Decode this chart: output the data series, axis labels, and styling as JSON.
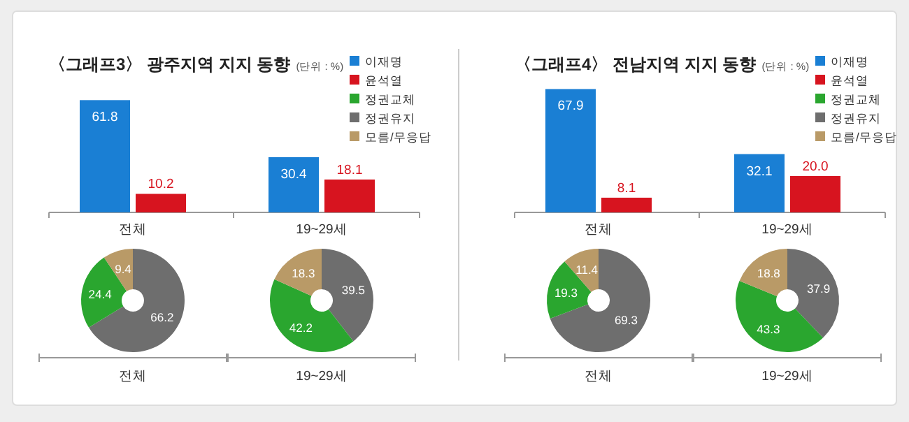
{
  "chart_data": [
    {
      "type": "bar",
      "title": "〈그래프3〉 광주지역 지지 동향",
      "subtitle": "(단위 : %)",
      "categories": [
        "전체",
        "19~29세"
      ],
      "legend": "top right",
      "series": [
        {
          "name": "이재명",
          "color": "#1a7fd4",
          "values": [
            61.8,
            30.4
          ],
          "value_labels": [
            "61.8",
            "30.4"
          ]
        },
        {
          "name": "윤석열",
          "color": "#d7141f",
          "values": [
            10.2,
            18.1
          ],
          "value_labels": [
            "10.2",
            "18.1"
          ]
        },
        {
          "name": "정권교체",
          "color": "#2aa62f",
          "values": [
            null,
            null
          ]
        },
        {
          "name": "정권유지",
          "color": "#6e6e6e",
          "values": [
            null,
            null
          ]
        },
        {
          "name": "모름/무응답",
          "color": "#b99a67",
          "values": [
            null,
            null
          ]
        }
      ]
    },
    {
      "type": "donut",
      "xlabel": "전체",
      "categories": [
        null,
        null,
        null
      ],
      "values": [
        66.2,
        24.4,
        9.4
      ],
      "colors": [
        "#6e6e6e",
        "#2aa62f",
        "#b99a67"
      ],
      "data_labels": true
    },
    {
      "type": "donut",
      "xlabel": "19~29세",
      "categories": [
        null,
        null,
        null
      ],
      "values": [
        39.5,
        42.2,
        18.3
      ],
      "colors": [
        "#6e6e6e",
        "#2aa62f",
        "#b99a67"
      ],
      "data_labels": true
    },
    {
      "type": "bar",
      "title": "〈그래프4〉 전남지역 지지 동향",
      "subtitle": "(단위 : %)",
      "categories": [
        "전체",
        "19~29세"
      ],
      "legend": "top right",
      "series": [
        {
          "name": "이재명",
          "color": "#1a7fd4",
          "values": [
            67.9,
            32.1
          ],
          "value_labels": [
            "67.9",
            "32.1"
          ]
        },
        {
          "name": "윤석열",
          "color": "#d7141f",
          "values": [
            8.1,
            20.0
          ],
          "value_labels": [
            "8.1",
            "20.0"
          ]
        },
        {
          "name": "정권교체",
          "color": "#2aa62f",
          "values": [
            null,
            null
          ]
        },
        {
          "name": "정권유지",
          "color": "#6e6e6e",
          "values": [
            null,
            null
          ]
        },
        {
          "name": "모름/무응답",
          "color": "#b99a67",
          "values": [
            null,
            null
          ]
        }
      ]
    },
    {
      "type": "donut",
      "xlabel": "전체",
      "categories": [
        null,
        null,
        null
      ],
      "values": [
        69.3,
        19.3,
        11.4
      ],
      "colors": [
        "#6e6e6e",
        "#2aa62f",
        "#b99a67"
      ],
      "data_labels": true
    },
    {
      "type": "donut",
      "xlabel": "19~29세",
      "categories": [
        null,
        null,
        null
      ],
      "values": [
        37.9,
        43.3,
        18.8
      ],
      "colors": [
        "#6e6e6e",
        "#2aa62f",
        "#b99a67"
      ],
      "data_labels": true
    }
  ]
}
